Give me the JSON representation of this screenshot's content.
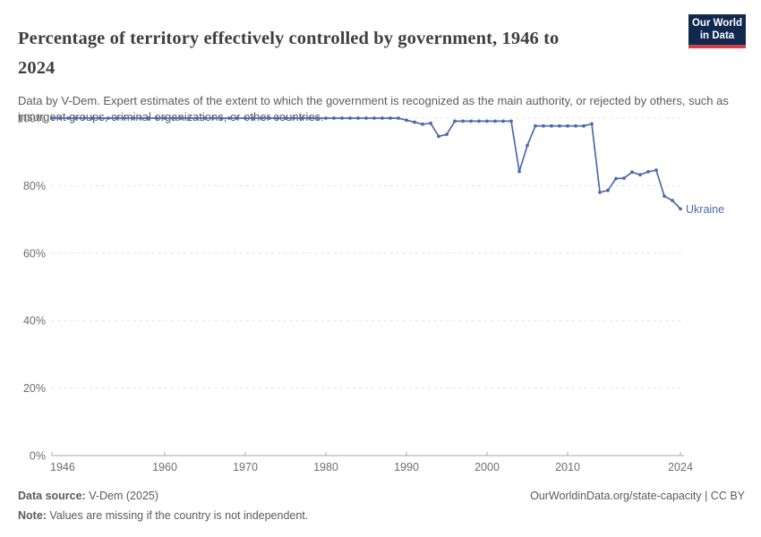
{
  "header": {
    "title": "Percentage of territory effectively controlled by government, 1946 to 2024",
    "subtitle": "Data by V-Dem. Expert estimates of the extent to which the government is recognized as the main authority, or rejected by others, such as insurgent groups, criminal organizations, or other countries."
  },
  "logo": {
    "line1": "Our World",
    "line2": "in Data",
    "bg_color": "#12294f",
    "accent_color": "#e0393e"
  },
  "chart_data": {
    "type": "line",
    "title": "Percentage of territory effectively controlled by government, 1946 to 2024",
    "xlabel": "",
    "ylabel": "",
    "xlim": [
      1946,
      2024
    ],
    "ylim": [
      0,
      100
    ],
    "grid": "horizontal-dashed",
    "legend_position": "end-of-line",
    "line_color": "#4c6bab",
    "axis_color": "#a7a7a7",
    "grid_color": "#dcdcdc",
    "tick_label_color": "#6e6e6e",
    "yticks": [
      {
        "value": 0,
        "label": "0%"
      },
      {
        "value": 20,
        "label": "20%"
      },
      {
        "value": 40,
        "label": "40%"
      },
      {
        "value": 60,
        "label": "60%"
      },
      {
        "value": 80,
        "label": "80%"
      },
      {
        "value": 100,
        "label": "100%"
      }
    ],
    "xticks": [
      {
        "value": 1946,
        "label": "1946"
      },
      {
        "value": 1960,
        "label": "1960"
      },
      {
        "value": 1970,
        "label": "1970"
      },
      {
        "value": 1980,
        "label": "1980"
      },
      {
        "value": 1990,
        "label": "1990"
      },
      {
        "value": 2000,
        "label": "2000"
      },
      {
        "value": 2010,
        "label": "2010"
      },
      {
        "value": 2024,
        "label": "2024"
      }
    ],
    "series": [
      {
        "name": "Ukraine",
        "color": "#4c6bab",
        "x": [
          1946,
          1947,
          1948,
          1949,
          1950,
          1951,
          1952,
          1953,
          1954,
          1955,
          1956,
          1957,
          1958,
          1959,
          1960,
          1961,
          1962,
          1963,
          1964,
          1965,
          1966,
          1967,
          1968,
          1969,
          1970,
          1971,
          1972,
          1973,
          1974,
          1975,
          1976,
          1977,
          1978,
          1979,
          1980,
          1981,
          1982,
          1983,
          1984,
          1985,
          1986,
          1987,
          1988,
          1989,
          1990,
          1991,
          1992,
          1993,
          1994,
          1995,
          1996,
          1997,
          1998,
          1999,
          2000,
          2001,
          2002,
          2003,
          2004,
          2005,
          2006,
          2007,
          2008,
          2009,
          2010,
          2011,
          2012,
          2013,
          2014,
          2015,
          2016,
          2017,
          2018,
          2019,
          2020,
          2021,
          2022,
          2023,
          2024
        ],
        "values": [
          100,
          100,
          100,
          100,
          100,
          100,
          100,
          100,
          100,
          100,
          100,
          100,
          100,
          100,
          100,
          100,
          100,
          100,
          100,
          100,
          100,
          100,
          100,
          100,
          100,
          100,
          100,
          100,
          100,
          100,
          100,
          100,
          100,
          100,
          100,
          100,
          100,
          100,
          100,
          100,
          100,
          100,
          100,
          100,
          99.4,
          98.8,
          98.2,
          98.5,
          94.6,
          95.2,
          99.1,
          99.1,
          99.1,
          99.1,
          99.1,
          99.1,
          99.1,
          99.1,
          84.2,
          91.9,
          97.7,
          97.7,
          97.7,
          97.7,
          97.7,
          97.7,
          97.7,
          98.3,
          78,
          78.6,
          82.1,
          82.2,
          84,
          83.2,
          84.1,
          84.6,
          76.9,
          75.6,
          73.1
        ]
      }
    ]
  },
  "footer": {
    "source_label": "Data source:",
    "source_value": " V-Dem (2025)",
    "link": "OurWorldinData.org/state-capacity | CC BY",
    "note_label": "Note:",
    "note_value": " Values are missing if the country is not independent."
  }
}
